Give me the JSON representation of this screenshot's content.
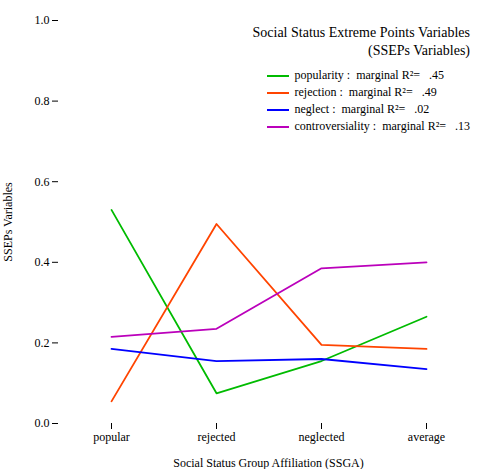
{
  "chart_data": {
    "type": "line",
    "title": "Social Status Extreme Points Variables",
    "subtitle": "(SSEPs Variables)",
    "x_label": "Social Status Group Affiliation (SSGA)",
    "y_label": "SSEPs Variables",
    "categories": [
      "popular",
      "rejected",
      "neglected",
      "average"
    ],
    "series": [
      {
        "name": "popularity :  marginal R²=   .45",
        "color": "#00BB00",
        "values": [
          0.53,
          0.075,
          0.155,
          0.265
        ]
      },
      {
        "name": "rejection :  marginal R²=   .49",
        "color": "#FF4400",
        "values": [
          0.055,
          0.495,
          0.195,
          0.185
        ]
      },
      {
        "name": "neglect :  marginal R²=   .02",
        "color": "#0000FF",
        "values": [
          0.185,
          0.155,
          0.16,
          0.135
        ]
      },
      {
        "name": "controversiality :  marginal R²=   .13",
        "color": "#BB00BB",
        "values": [
          0.215,
          0.235,
          0.385,
          0.4
        ]
      }
    ],
    "ylim": [
      0.0,
      1.0
    ],
    "yticks": [
      {
        "value": 0.0,
        "label": "0.0"
      },
      0.2,
      0.4,
      0.6,
      0.8,
      {
        "value": 1.0,
        "label": "1.0"
      }
    ],
    "grid": false,
    "legend": "upper right"
  }
}
